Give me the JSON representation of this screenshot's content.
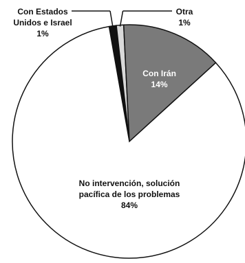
{
  "chart_data": {
    "type": "pie",
    "title": "",
    "slices": [
      {
        "label_lines": [
          "Con Estados",
          "Unidos e Israel"
        ],
        "value_label": "1%",
        "value": 1,
        "color": "#111111"
      },
      {
        "label_lines": [
          "Otra"
        ],
        "value_label": "1%",
        "value": 1,
        "color": "#d9d9d9"
      },
      {
        "label_lines": [
          "Con Irán"
        ],
        "value_label": "14%",
        "value": 14,
        "color": "#7a7a7a",
        "text_color": "#ffffff"
      },
      {
        "label_lines": [
          "No intervención, solución",
          "pacífica de los problemas"
        ],
        "value_label": "84%",
        "value": 84,
        "color": "#ffffff",
        "text_color": "#111111"
      }
    ]
  }
}
